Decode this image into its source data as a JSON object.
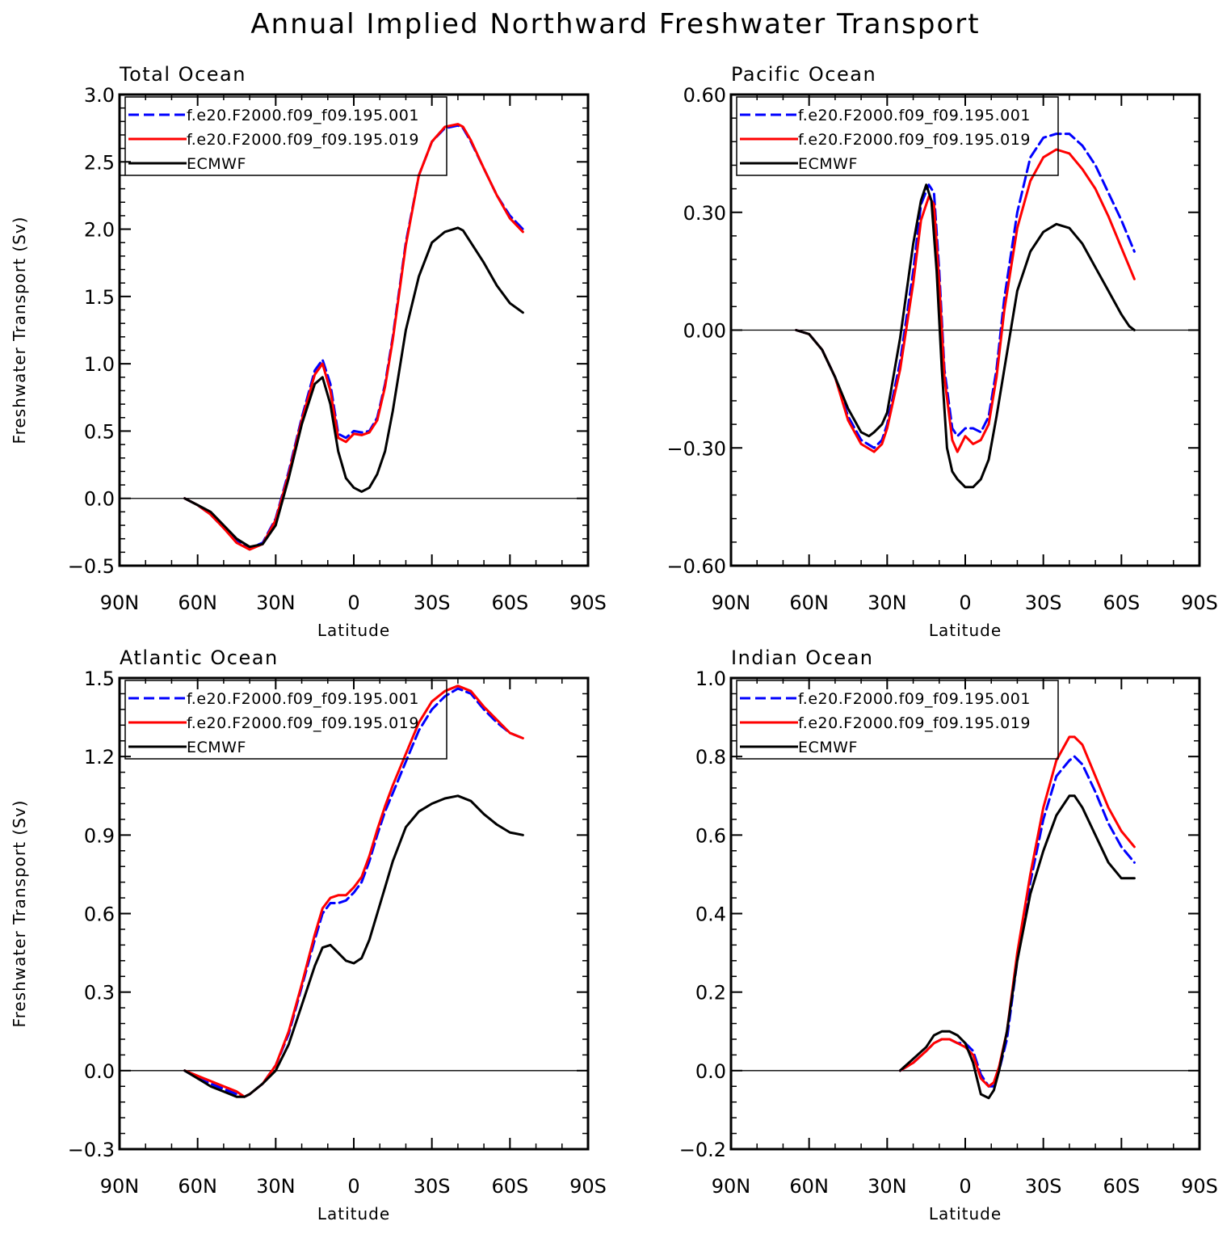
{
  "figure": {
    "title": "Annual Implied Northward Freshwater Transport"
  },
  "colors": {
    "model_001": "#0000ff",
    "model_019": "#ff0000",
    "ecmwf": "#000000",
    "axes": "#000000"
  },
  "chart_data": [
    {
      "type": "line",
      "panel": "Total Ocean",
      "title": "Total Ocean",
      "xlabel": "Latitude",
      "ylabel": "Freshwater Transport (Sv)",
      "xlim": [
        -90,
        90
      ],
      "xticks": [
        -90,
        -60,
        -30,
        0,
        30,
        60,
        90
      ],
      "xtick_labels": [
        "90N",
        "60N",
        "30N",
        "0",
        "30S",
        "60S",
        "90S"
      ],
      "ylim": [
        -0.5,
        3.0
      ],
      "yticks": [
        -0.5,
        0.0,
        0.5,
        1.0,
        1.5,
        2.0,
        2.5,
        3.0
      ],
      "ytick_labels": [
        "−0.5",
        "0.0",
        "0.5",
        "1.0",
        "1.5",
        "2.0",
        "2.5",
        "3.0"
      ],
      "legend": "top-left",
      "series": [
        {
          "name": "f.e20.F2000.f09_f09.195.001",
          "style": "dashed",
          "color": "#0000ff",
          "x": [
            -65,
            -60,
            -55,
            -50,
            -45,
            -40,
            -35,
            -30,
            -25,
            -20,
            -15,
            -12,
            -9,
            -6,
            -3,
            0,
            3,
            6,
            9,
            12,
            15,
            20,
            25,
            30,
            35,
            40,
            42,
            45,
            50,
            55,
            60,
            65
          ],
          "y": [
            0.0,
            -0.05,
            -0.12,
            -0.22,
            -0.32,
            -0.37,
            -0.33,
            -0.15,
            0.2,
            0.6,
            0.95,
            1.03,
            0.85,
            0.48,
            0.45,
            0.5,
            0.49,
            0.5,
            0.6,
            0.85,
            1.2,
            1.9,
            2.4,
            2.65,
            2.75,
            2.77,
            2.75,
            2.65,
            2.45,
            2.25,
            2.1,
            2.0
          ]
        },
        {
          "name": "f.e20.F2000.f09_f09.195.019",
          "style": "solid",
          "color": "#ff0000",
          "x": [
            -65,
            -60,
            -55,
            -50,
            -45,
            -40,
            -35,
            -30,
            -25,
            -20,
            -15,
            -12,
            -9,
            -6,
            -3,
            0,
            3,
            6,
            9,
            12,
            15,
            20,
            25,
            30,
            35,
            40,
            42,
            45,
            50,
            55,
            60,
            65
          ],
          "y": [
            0.0,
            -0.05,
            -0.12,
            -0.22,
            -0.33,
            -0.38,
            -0.34,
            -0.16,
            0.18,
            0.58,
            0.92,
            1.0,
            0.8,
            0.45,
            0.42,
            0.48,
            0.47,
            0.49,
            0.58,
            0.83,
            1.18,
            1.88,
            2.4,
            2.65,
            2.76,
            2.78,
            2.76,
            2.66,
            2.45,
            2.25,
            2.08,
            1.98
          ]
        },
        {
          "name": "ECMWF",
          "style": "solid",
          "color": "#000000",
          "x": [
            -65,
            -60,
            -55,
            -50,
            -45,
            -40,
            -35,
            -30,
            -25,
            -20,
            -15,
            -12,
            -9,
            -6,
            -3,
            0,
            3,
            6,
            9,
            12,
            15,
            20,
            25,
            30,
            35,
            40,
            42,
            45,
            50,
            55,
            60,
            65
          ],
          "y": [
            0.0,
            -0.05,
            -0.1,
            -0.2,
            -0.3,
            -0.36,
            -0.34,
            -0.2,
            0.15,
            0.55,
            0.85,
            0.9,
            0.7,
            0.35,
            0.15,
            0.08,
            0.05,
            0.08,
            0.18,
            0.35,
            0.65,
            1.25,
            1.65,
            1.9,
            1.98,
            2.01,
            1.99,
            1.9,
            1.75,
            1.58,
            1.45,
            1.38
          ]
        }
      ]
    },
    {
      "type": "line",
      "panel": "Pacific Ocean",
      "title": "Pacific Ocean",
      "xlabel": "Latitude",
      "ylabel": "",
      "xlim": [
        -90,
        90
      ],
      "xticks": [
        -90,
        -60,
        -30,
        0,
        30,
        60,
        90
      ],
      "xtick_labels": [
        "90N",
        "60N",
        "30N",
        "0",
        "30S",
        "60S",
        "90S"
      ],
      "ylim": [
        -0.6,
        0.6
      ],
      "yticks": [
        -0.6,
        -0.3,
        0.0,
        0.3,
        0.6
      ],
      "ytick_labels": [
        "−0.60",
        "−0.30",
        "0.00",
        "0.30",
        "0.60"
      ],
      "legend": "top-left",
      "series": [
        {
          "name": "f.e20.F2000.f09_f09.195.001",
          "style": "dashed",
          "color": "#0000ff",
          "x": [
            -65,
            -60,
            -55,
            -50,
            -45,
            -40,
            -35,
            -32,
            -30,
            -25,
            -20,
            -17,
            -14,
            -12,
            -10,
            -8,
            -5,
            -3,
            0,
            3,
            6,
            9,
            12,
            15,
            20,
            25,
            30,
            35,
            40,
            45,
            50,
            55,
            60,
            65
          ],
          "y": [
            0.0,
            -0.01,
            -0.05,
            -0.12,
            -0.22,
            -0.28,
            -0.3,
            -0.28,
            -0.24,
            -0.08,
            0.15,
            0.32,
            0.37,
            0.35,
            0.15,
            -0.1,
            -0.25,
            -0.27,
            -0.25,
            -0.25,
            -0.26,
            -0.22,
            -0.1,
            0.08,
            0.3,
            0.44,
            0.49,
            0.5,
            0.5,
            0.47,
            0.42,
            0.35,
            0.28,
            0.2
          ]
        },
        {
          "name": "f.e20.F2000.f09_f09.195.019",
          "style": "solid",
          "color": "#ff0000",
          "x": [
            -65,
            -60,
            -55,
            -50,
            -45,
            -40,
            -35,
            -32,
            -30,
            -25,
            -20,
            -17,
            -14,
            -12,
            -10,
            -8,
            -5,
            -3,
            0,
            3,
            6,
            9,
            12,
            15,
            20,
            25,
            30,
            35,
            40,
            45,
            50,
            55,
            60,
            65
          ],
          "y": [
            0.0,
            -0.01,
            -0.05,
            -0.12,
            -0.23,
            -0.29,
            -0.31,
            -0.29,
            -0.25,
            -0.1,
            0.12,
            0.28,
            0.34,
            0.32,
            0.12,
            -0.12,
            -0.28,
            -0.31,
            -0.27,
            -0.29,
            -0.28,
            -0.24,
            -0.12,
            0.05,
            0.26,
            0.38,
            0.44,
            0.46,
            0.45,
            0.41,
            0.36,
            0.29,
            0.21,
            0.13
          ]
        },
        {
          "name": "ECMWF",
          "style": "solid",
          "color": "#000000",
          "x": [
            -65,
            -60,
            -55,
            -50,
            -45,
            -40,
            -37,
            -35,
            -32,
            -30,
            -25,
            -20,
            -17,
            -15,
            -13,
            -11,
            -9,
            -7,
            -5,
            -3,
            0,
            3,
            6,
            9,
            12,
            15,
            20,
            25,
            30,
            35,
            40,
            45,
            50,
            55,
            60,
            63,
            65
          ],
          "y": [
            0.0,
            -0.01,
            -0.05,
            -0.12,
            -0.2,
            -0.26,
            -0.27,
            -0.26,
            -0.24,
            -0.21,
            -0.02,
            0.22,
            0.33,
            0.37,
            0.33,
            0.15,
            -0.1,
            -0.3,
            -0.36,
            -0.38,
            -0.4,
            -0.4,
            -0.38,
            -0.33,
            -0.22,
            -0.1,
            0.1,
            0.2,
            0.25,
            0.27,
            0.26,
            0.22,
            0.16,
            0.1,
            0.04,
            0.01,
            0.0
          ]
        }
      ]
    },
    {
      "type": "line",
      "panel": "Atlantic Ocean",
      "title": "Atlantic Ocean",
      "xlabel": "Latitude",
      "ylabel": "Freshwater Transport (Sv)",
      "xlim": [
        -90,
        90
      ],
      "xticks": [
        -90,
        -60,
        -30,
        0,
        30,
        60,
        90
      ],
      "xtick_labels": [
        "90N",
        "60N",
        "30N",
        "0",
        "30S",
        "60S",
        "90S"
      ],
      "ylim": [
        -0.3,
        1.5
      ],
      "yticks": [
        -0.3,
        0.0,
        0.3,
        0.6,
        0.9,
        1.2,
        1.5
      ],
      "ytick_labels": [
        "−0.3",
        "0.0",
        "0.3",
        "0.6",
        "0.9",
        "1.2",
        "1.5"
      ],
      "legend": "top-left",
      "series": [
        {
          "name": "f.e20.F2000.f09_f09.195.001",
          "style": "dashed",
          "color": "#0000ff",
          "x": [
            -65,
            -60,
            -55,
            -50,
            -45,
            -42,
            -40,
            -35,
            -30,
            -25,
            -20,
            -15,
            -12,
            -9,
            -6,
            -3,
            0,
            3,
            6,
            9,
            12,
            15,
            20,
            25,
            30,
            35,
            40,
            45,
            50,
            55,
            60,
            65
          ],
          "y": [
            0.0,
            -0.03,
            -0.05,
            -0.07,
            -0.09,
            -0.1,
            -0.09,
            -0.05,
            0.02,
            0.14,
            0.32,
            0.5,
            0.6,
            0.64,
            0.64,
            0.65,
            0.68,
            0.72,
            0.8,
            0.9,
            0.99,
            1.06,
            1.18,
            1.3,
            1.38,
            1.43,
            1.46,
            1.44,
            1.38,
            1.33,
            1.29,
            1.27
          ]
        },
        {
          "name": "f.e20.F2000.f09_f09.195.019",
          "style": "solid",
          "color": "#ff0000",
          "x": [
            -65,
            -60,
            -55,
            -50,
            -45,
            -42,
            -40,
            -35,
            -30,
            -25,
            -20,
            -15,
            -12,
            -9,
            -6,
            -3,
            0,
            3,
            6,
            9,
            12,
            15,
            20,
            25,
            30,
            35,
            40,
            45,
            50,
            55,
            60,
            65
          ],
          "y": [
            0.0,
            -0.02,
            -0.04,
            -0.06,
            -0.08,
            -0.1,
            -0.09,
            -0.05,
            0.02,
            0.15,
            0.33,
            0.52,
            0.62,
            0.66,
            0.67,
            0.67,
            0.7,
            0.74,
            0.82,
            0.92,
            1.01,
            1.09,
            1.21,
            1.33,
            1.41,
            1.45,
            1.47,
            1.45,
            1.39,
            1.34,
            1.29,
            1.27
          ]
        },
        {
          "name": "ECMWF",
          "style": "solid",
          "color": "#000000",
          "x": [
            -65,
            -60,
            -55,
            -50,
            -45,
            -42,
            -40,
            -35,
            -30,
            -25,
            -20,
            -15,
            -12,
            -9,
            -6,
            -3,
            0,
            3,
            6,
            9,
            12,
            15,
            20,
            25,
            30,
            35,
            40,
            45,
            50,
            55,
            60,
            65
          ],
          "y": [
            0.0,
            -0.03,
            -0.06,
            -0.08,
            -0.1,
            -0.1,
            -0.09,
            -0.05,
            0.0,
            0.1,
            0.25,
            0.4,
            0.47,
            0.48,
            0.45,
            0.42,
            0.41,
            0.43,
            0.5,
            0.6,
            0.7,
            0.8,
            0.93,
            0.99,
            1.02,
            1.04,
            1.05,
            1.03,
            0.98,
            0.94,
            0.91,
            0.9
          ]
        }
      ]
    },
    {
      "type": "line",
      "panel": "Indian Ocean",
      "title": "Indian Ocean",
      "xlabel": "Latitude",
      "ylabel": "",
      "xlim": [
        -90,
        90
      ],
      "xticks": [
        -90,
        -60,
        -30,
        0,
        30,
        60,
        90
      ],
      "xtick_labels": [
        "90N",
        "60N",
        "30N",
        "0",
        "30S",
        "60S",
        "90S"
      ],
      "ylim": [
        -0.2,
        1.0
      ],
      "yticks": [
        -0.2,
        0.0,
        0.2,
        0.4,
        0.6,
        0.8,
        1.0
      ],
      "ytick_labels": [
        "−0.2",
        "0.0",
        "0.2",
        "0.4",
        "0.6",
        "0.8",
        "1.0"
      ],
      "legend": "top-left",
      "series": [
        {
          "name": "f.e20.F2000.f09_f09.195.001",
          "style": "dashed",
          "color": "#0000ff",
          "x": [
            -25,
            -20,
            -15,
            -12,
            -9,
            -6,
            -3,
            0,
            3,
            6,
            9,
            11,
            13,
            16,
            20,
            25,
            30,
            35,
            40,
            42,
            45,
            50,
            55,
            60,
            65
          ],
          "y": [
            0.0,
            0.02,
            0.05,
            0.07,
            0.08,
            0.08,
            0.07,
            0.07,
            0.05,
            -0.01,
            -0.04,
            -0.04,
            0.0,
            0.08,
            0.28,
            0.48,
            0.64,
            0.75,
            0.79,
            0.8,
            0.78,
            0.71,
            0.63,
            0.57,
            0.53
          ]
        },
        {
          "name": "f.e20.F2000.f09_f09.195.019",
          "style": "solid",
          "color": "#ff0000",
          "x": [
            -25,
            -20,
            -15,
            -12,
            -9,
            -6,
            -3,
            0,
            3,
            6,
            9,
            11,
            13,
            16,
            20,
            25,
            30,
            35,
            40,
            42,
            45,
            50,
            55,
            60,
            65
          ],
          "y": [
            0.0,
            0.02,
            0.05,
            0.07,
            0.08,
            0.08,
            0.07,
            0.06,
            0.04,
            -0.02,
            -0.04,
            -0.03,
            0.01,
            0.1,
            0.3,
            0.5,
            0.67,
            0.79,
            0.85,
            0.85,
            0.83,
            0.75,
            0.67,
            0.61,
            0.57
          ]
        },
        {
          "name": "ECMWF",
          "style": "solid",
          "color": "#000000",
          "x": [
            -25,
            -20,
            -15,
            -12,
            -9,
            -6,
            -3,
            0,
            3,
            6,
            9,
            11,
            13,
            16,
            20,
            25,
            30,
            35,
            40,
            42,
            45,
            50,
            55,
            60,
            65
          ],
          "y": [
            0.0,
            0.03,
            0.06,
            0.09,
            0.1,
            0.1,
            0.09,
            0.07,
            0.02,
            -0.06,
            -0.07,
            -0.05,
            0.0,
            0.1,
            0.28,
            0.45,
            0.56,
            0.65,
            0.7,
            0.7,
            0.67,
            0.6,
            0.53,
            0.49,
            0.49
          ]
        }
      ]
    }
  ]
}
